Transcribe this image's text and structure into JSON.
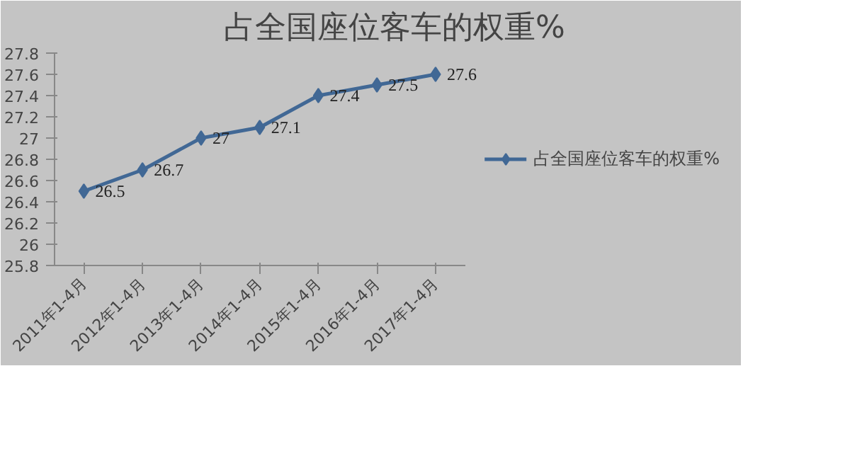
{
  "chart_data": {
    "type": "line",
    "title": "占全国座位客车的权重%",
    "categories": [
      "2011年1-4月",
      "2012年1-4月",
      "2013年1-4月",
      "2014年1-4月",
      "2015年1-4月",
      "2016年1-4月",
      "2017年1-4月"
    ],
    "series": [
      {
        "name": "占全国座位客车的权重%",
        "color": "#416895",
        "values": [
          26.5,
          26.7,
          27,
          27.1,
          27.4,
          27.5,
          27.6
        ]
      }
    ],
    "ylim": [
      25.8,
      27.8
    ],
    "yticks": [
      25.8,
      26,
      26.2,
      26.4,
      26.6,
      26.8,
      27,
      27.2,
      27.4,
      27.6,
      27.8
    ],
    "marker": "diamond",
    "line_style": "solid",
    "data_labels": true,
    "legend": "right",
    "grid": false
  }
}
